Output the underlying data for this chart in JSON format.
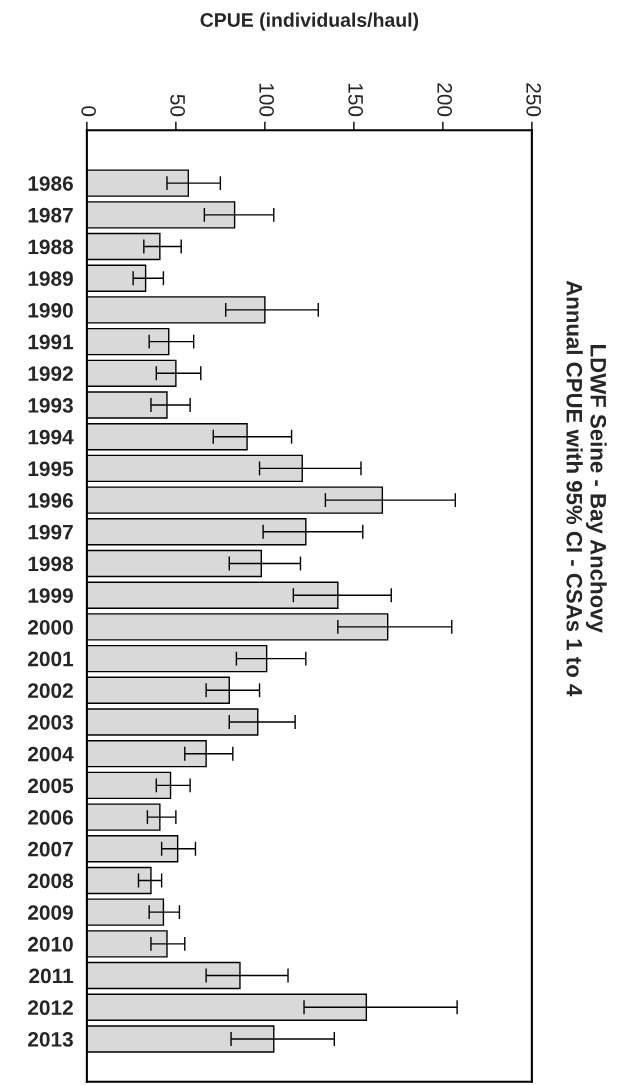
{
  "chart_data": {
    "type": "bar",
    "orientation": "horizontal",
    "title": "LDWF Seine - Bay Anchovy\nAnnual CPUE with 95% CI - CSAs 1 to 4",
    "xlabel": "CPUE (individuals/haul)",
    "categories": [
      "1986",
      "1987",
      "1988",
      "1989",
      "1990",
      "1991",
      "1992",
      "1993",
      "1994",
      "1995",
      "1996",
      "1997",
      "1998",
      "1999",
      "2000",
      "2001",
      "2002",
      "2003",
      "2004",
      "2005",
      "2006",
      "2007",
      "2008",
      "2009",
      "2010",
      "2011",
      "2012",
      "2013"
    ],
    "values": [
      57,
      83,
      41,
      33,
      100,
      46,
      50,
      45,
      90,
      121,
      166,
      123,
      98,
      141,
      169,
      101,
      80,
      96,
      67,
      47,
      41,
      51,
      36,
      43,
      45,
      86,
      157,
      105
    ],
    "errors": [
      [
        45,
        75
      ],
      [
        66,
        105
      ],
      [
        32,
        53
      ],
      [
        26,
        43
      ],
      [
        78,
        130
      ],
      [
        35,
        60
      ],
      [
        39,
        64
      ],
      [
        36,
        58
      ],
      [
        71,
        115
      ],
      [
        97,
        154
      ],
      [
        134,
        207
      ],
      [
        99,
        155
      ],
      [
        80,
        120
      ],
      [
        116,
        171
      ],
      [
        141,
        205
      ],
      [
        84,
        123
      ],
      [
        67,
        97
      ],
      [
        80,
        117
      ],
      [
        55,
        82
      ],
      [
        39,
        58
      ],
      [
        34,
        50
      ],
      [
        42,
        61
      ],
      [
        29,
        42
      ],
      [
        35,
        52
      ],
      [
        36,
        55
      ],
      [
        67,
        113
      ],
      [
        122,
        208
      ],
      [
        81,
        139
      ]
    ],
    "color": "#d9d9d9",
    "xlim": [
      0,
      250
    ],
    "xticks": [
      0,
      50,
      100,
      150,
      200,
      250
    ],
    "grid": false,
    "legend": false
  }
}
